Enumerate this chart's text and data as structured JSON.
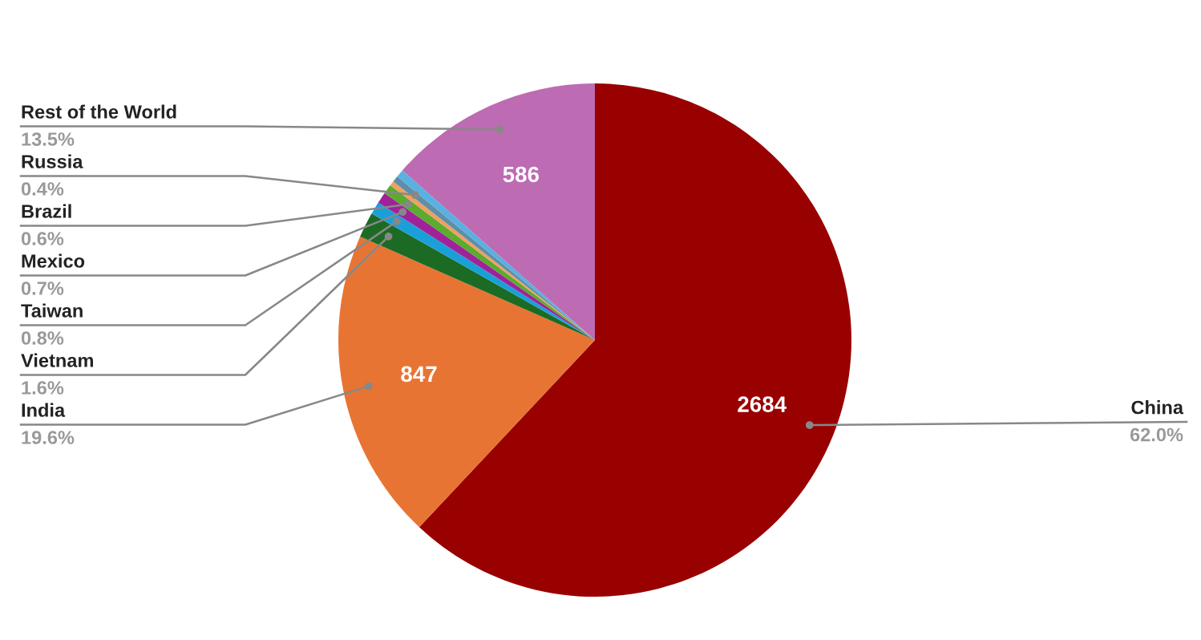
{
  "chart_data": {
    "type": "pie",
    "categories": [
      "China",
      "India",
      "Vietnam",
      "Taiwan",
      "Mexico",
      "Brazil",
      null,
      "Russia",
      null,
      "Rest of the World"
    ],
    "values": [
      62.0,
      19.6,
      1.6,
      0.8,
      0.7,
      0.6,
      0.3,
      0.4,
      0.5,
      13.5
    ],
    "colors": [
      "#990000",
      "#e87433",
      "#1c6b24",
      "#1aa0d8",
      "#a0229a",
      "#5aab2e",
      "#f0a060",
      "#5f8fa8",
      "#5ab0e0",
      "#bd6bb3"
    ],
    "value_labels": [
      "62.0%",
      "19.6%",
      "1.6%",
      "0.8%",
      "0.7%",
      "0.6%",
      null,
      "0.4%",
      null,
      "13.5%"
    ],
    "annotations": [
      {
        "text": "2684",
        "x": "China"
      },
      {
        "text": "847",
        "x": "India"
      },
      {
        "text": "586",
        "x": "Rest of the World"
      }
    ]
  }
}
